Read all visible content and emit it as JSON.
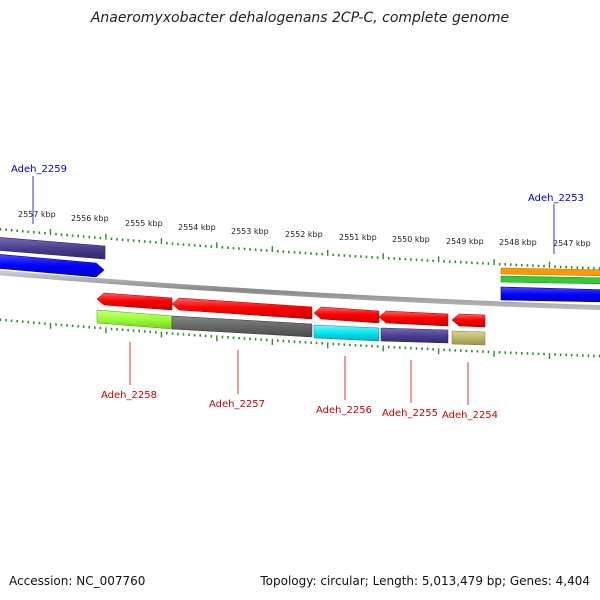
{
  "title": "Anaeromyxobacter dehalogenans 2CP-C, complete genome",
  "footer": {
    "accession": "Accession: NC_007760",
    "topology": "Topology: circular; Length: 5,013,479 bp; Genes: 4,404"
  },
  "kbp_ticks": [
    "2557 kbp",
    "2556 kbp",
    "2555 kbp",
    "2554 kbp",
    "2553 kbp",
    "2552 kbp",
    "2551 kbp",
    "2550 kbp",
    "2549 kbp",
    "2548 kbp",
    "2547 kbp"
  ],
  "gene_labels": {
    "adeh_2259": "Adeh_2259",
    "adeh_2253": "Adeh_2253",
    "adeh_2258": "Adeh_2258",
    "adeh_2257": "Adeh_2257",
    "adeh_2256": "Adeh_2256",
    "adeh_2255": "Adeh_2255",
    "adeh_2254": "Adeh_2254"
  },
  "colors": {
    "forward_label": "#0000cc",
    "reverse_label": "#cc0000",
    "tick": "#2e8b2e",
    "backbone": "#999999",
    "red_gene": "#ff0000",
    "blue_gene": "#0000ff",
    "purple_gene": "#4b3f8f",
    "lime_gene": "#99ff33",
    "gray_gene": "#666666",
    "cyan_gene": "#00e5ee",
    "khaki_gene": "#bdb76b",
    "orange_gene": "#ff9900",
    "green_gene": "#33cc33"
  }
}
